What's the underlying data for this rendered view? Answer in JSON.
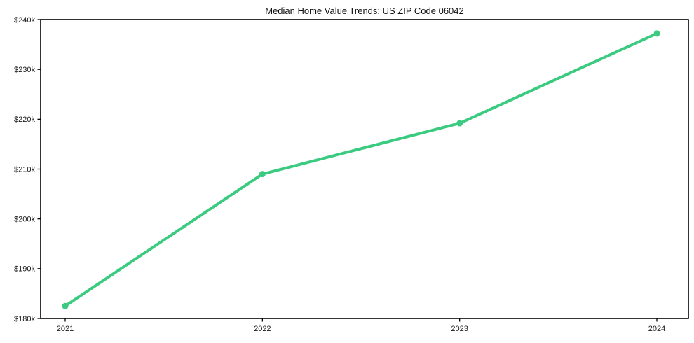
{
  "chart_data": {
    "type": "line",
    "title": "Median Home Value Trends: US ZIP Code 06042",
    "x": [
      2021,
      2022,
      2023,
      2024
    ],
    "xtick_labels": [
      "2021",
      "2022",
      "2023",
      "2024"
    ],
    "series": [
      {
        "name": "Median Home Value",
        "values": [
          182500,
          209000,
          219200,
          237200
        ]
      }
    ],
    "xlabel": "",
    "ylabel": "",
    "ylim": [
      180000,
      240000
    ],
    "yticks": [
      180000,
      190000,
      200000,
      210000,
      220000,
      230000,
      240000
    ],
    "ytick_labels": [
      "$180k",
      "$190k",
      "$200k",
      "$210k",
      "$220k",
      "$230k",
      "$240k"
    ],
    "grid": false,
    "legend_position": "none",
    "line_color": "#3bcb80",
    "marker": "circle",
    "background_color": "#ffffff",
    "spine_color": "#000000",
    "tick_label_color": "#1a1a1a"
  }
}
